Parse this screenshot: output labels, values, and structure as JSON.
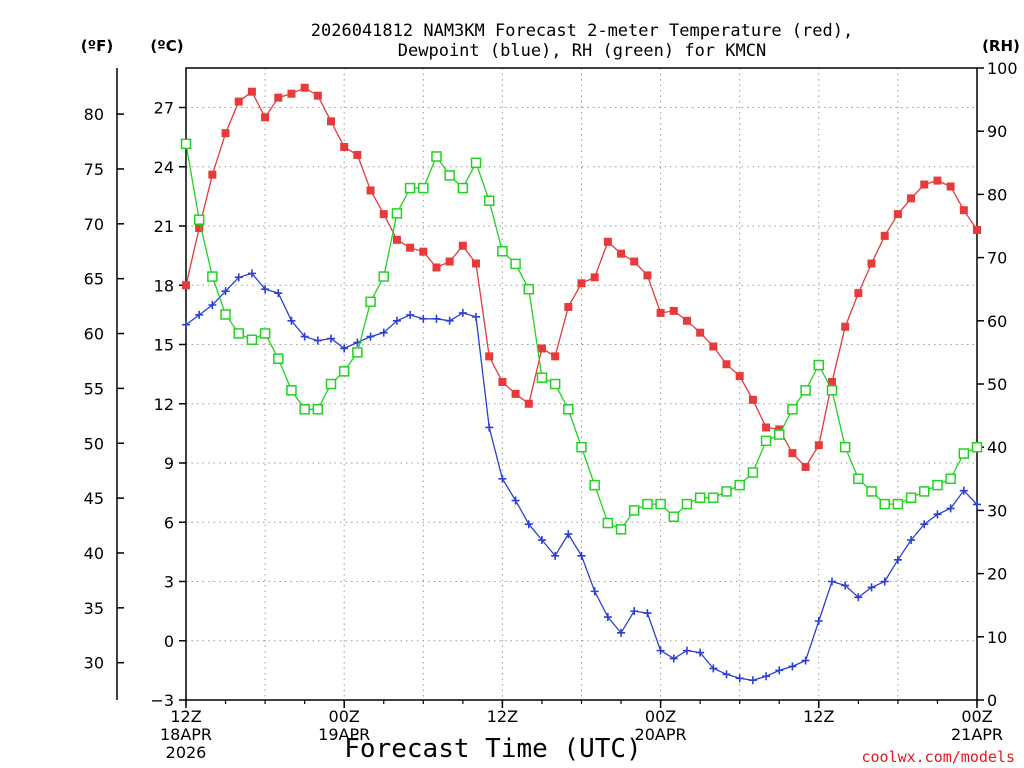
{
  "chart_data": {
    "type": "line",
    "title_line1": "2026041812 NAM3KM Forecast 2-meter Temperature (red),",
    "title_line2": "Dewpoint (blue), RH (green) for KMCN",
    "xlabel": "Forecast Time (UTC)",
    "credit": "coolwx.com/models",
    "unit_f": "(ºF)",
    "unit_c": "(ºC)",
    "unit_rh": "(RH)",
    "xlim": [
      0,
      60
    ],
    "ylim_c": [
      -3,
      29
    ],
    "ylim_rh": [
      0,
      100
    ],
    "x_ticks": [
      {
        "x": 0,
        "lines": [
          "12Z",
          "18APR",
          "2026"
        ]
      },
      {
        "x": 12,
        "lines": [
          "00Z",
          "19APR"
        ]
      },
      {
        "x": 24,
        "lines": [
          "12Z"
        ]
      },
      {
        "x": 36,
        "lines": [
          "00Z",
          "20APR"
        ]
      },
      {
        "x": 48,
        "lines": [
          "12Z"
        ]
      },
      {
        "x": 60,
        "lines": [
          "00Z",
          "21APR"
        ]
      }
    ],
    "c_ticks": [
      -3,
      0,
      3,
      6,
      9,
      12,
      15,
      18,
      21,
      24,
      27
    ],
    "f_ticks": [
      30,
      35,
      40,
      45,
      50,
      55,
      60,
      65,
      70,
      75,
      80
    ],
    "rh_ticks": [
      0,
      10,
      20,
      30,
      40,
      50,
      60,
      70,
      80,
      90,
      100
    ],
    "series": [
      {
        "name": "2-meter Temperature",
        "unit": "C",
        "color": "#e8393b",
        "marker": "filled-square",
        "values": [
          18.0,
          20.9,
          23.6,
          25.7,
          27.3,
          27.8,
          26.5,
          27.5,
          27.7,
          28.0,
          27.6,
          26.3,
          25.0,
          24.6,
          22.8,
          21.6,
          20.3,
          19.9,
          19.7,
          18.9,
          19.2,
          20.0,
          19.1,
          14.4,
          13.1,
          12.5,
          12.0,
          14.8,
          14.4,
          16.9,
          18.1,
          18.4,
          20.2,
          19.6,
          19.2,
          18.5,
          16.6,
          16.7,
          16.2,
          15.6,
          14.9,
          14.0,
          13.4,
          12.2,
          10.8,
          10.7,
          9.5,
          8.8,
          9.9,
          13.1,
          15.9,
          17.6,
          19.1,
          20.5,
          21.6,
          22.4,
          23.1,
          23.3,
          23.0,
          21.8,
          20.8
        ]
      },
      {
        "name": "Dewpoint",
        "unit": "C",
        "color": "#2b3fd6",
        "marker": "plus",
        "values": [
          16.0,
          16.5,
          17.0,
          17.7,
          18.4,
          18.6,
          17.8,
          17.6,
          16.2,
          15.4,
          15.2,
          15.3,
          14.8,
          15.1,
          15.4,
          15.6,
          16.2,
          16.5,
          16.3,
          16.3,
          16.2,
          16.6,
          16.4,
          10.8,
          8.2,
          7.1,
          5.9,
          5.1,
          4.3,
          5.4,
          4.3,
          2.5,
          1.2,
          0.4,
          1.5,
          1.4,
          -0.5,
          -0.9,
          -0.5,
          -0.6,
          -1.4,
          -1.7,
          -1.9,
          -2.0,
          -1.8,
          -1.5,
          -1.3,
          -1.0,
          1.0,
          3.0,
          2.8,
          2.2,
          2.7,
          3.0,
          4.1,
          5.1,
          5.9,
          6.4,
          6.7,
          7.6,
          6.9
        ]
      },
      {
        "name": "RH",
        "unit": "%",
        "color": "#21d321",
        "marker": "open-square",
        "values": [
          88,
          76,
          67,
          61,
          58,
          57,
          58,
          54,
          49,
          46,
          46,
          50,
          52,
          55,
          63,
          67,
          77,
          81,
          81,
          86,
          83,
          81,
          85,
          79,
          71,
          69,
          65,
          51,
          50,
          46,
          40,
          34,
          28,
          27,
          30,
          31,
          31,
          29,
          31,
          32,
          32,
          33,
          34,
          36,
          41,
          42,
          46,
          49,
          53,
          49,
          40,
          35,
          33,
          31,
          31,
          32,
          33,
          34,
          35,
          39,
          40
        ]
      }
    ]
  }
}
